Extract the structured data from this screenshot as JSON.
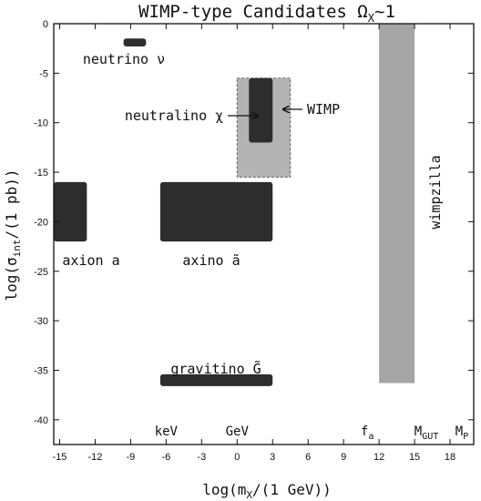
{
  "chart_data": {
    "type": "region",
    "title": "WIMP-type Candidates Ω",
    "title_sub": "X",
    "title_tail": "~1",
    "xlabel": {
      "pre": "log(m",
      "sub": "X",
      "post": "/(1 GeV))"
    },
    "ylabel": {
      "pre": "log(σ",
      "sub": "int",
      "post": "/(1 pb))"
    },
    "xlim": [
      -15.5,
      20
    ],
    "ylim": [
      -42.5,
      0
    ],
    "x_ticks": [
      -15,
      -12,
      -9,
      -6,
      -3,
      0,
      3,
      6,
      9,
      12,
      15,
      18
    ],
    "y_ticks": [
      0,
      -5,
      -10,
      -15,
      -20,
      -25,
      -30,
      -35,
      -40
    ],
    "x_tick_labels": [
      "-15",
      "-12",
      "-9",
      "-6",
      "-3",
      "0",
      "3",
      "6",
      "9",
      "12",
      "15",
      "18"
    ],
    "y_tick_labels": [
      "0",
      "-5",
      "-10",
      "-15",
      "-20",
      "-25",
      "-30",
      "-35",
      "-40"
    ],
    "scale_markers": [
      {
        "label": "keV",
        "x": -6
      },
      {
        "label": "GeV",
        "x": 0
      },
      {
        "label": "f",
        "sub": "a",
        "x": 11
      },
      {
        "label": "M",
        "sub": "GUT",
        "x": 16
      },
      {
        "label": "M",
        "sub": "P",
        "x": 19
      }
    ],
    "regions": [
      {
        "name": "wimpzilla-region",
        "x": [
          12,
          15
        ],
        "y": [
          -36.3,
          0
        ],
        "color": "#a5a5a5"
      },
      {
        "name": "wimp-region",
        "x": [
          0,
          4.5
        ],
        "y": [
          -15.5,
          -5.5
        ],
        "color": "#b3b3b3",
        "dashed": true
      },
      {
        "name": "neutralino-region",
        "x": [
          1,
          3
        ],
        "y": [
          -12,
          -5.5
        ],
        "color": "#2d2d2d",
        "rounded": true
      },
      {
        "name": "neutrino-region",
        "x": [
          -9.6,
          -7.7
        ],
        "y": [
          -2.3,
          -1.5
        ],
        "color": "#2d2d2d",
        "rounded": true
      },
      {
        "name": "axion-region",
        "x": [
          -15.5,
          -12.7
        ],
        "y": [
          -22,
          -16
        ],
        "color": "#2d2d2d",
        "rounded": true
      },
      {
        "name": "axino-region",
        "x": [
          -6.5,
          3
        ],
        "y": [
          -22,
          -16
        ],
        "color": "#2d2d2d",
        "rounded": true
      },
      {
        "name": "gravitino-region",
        "x": [
          -6.5,
          3
        ],
        "y": [
          -36.6,
          -35.4
        ],
        "color": "#2d2d2d",
        "rounded": true
      }
    ],
    "labels": {
      "neutrino": "neutrino ν",
      "neutralino": "neutralino χ",
      "wimp": "WIMP",
      "axion": "axion a",
      "axino": "axino ã",
      "gravitino": "gravitino G̃",
      "wimpzilla": "wimpzilla"
    }
  }
}
